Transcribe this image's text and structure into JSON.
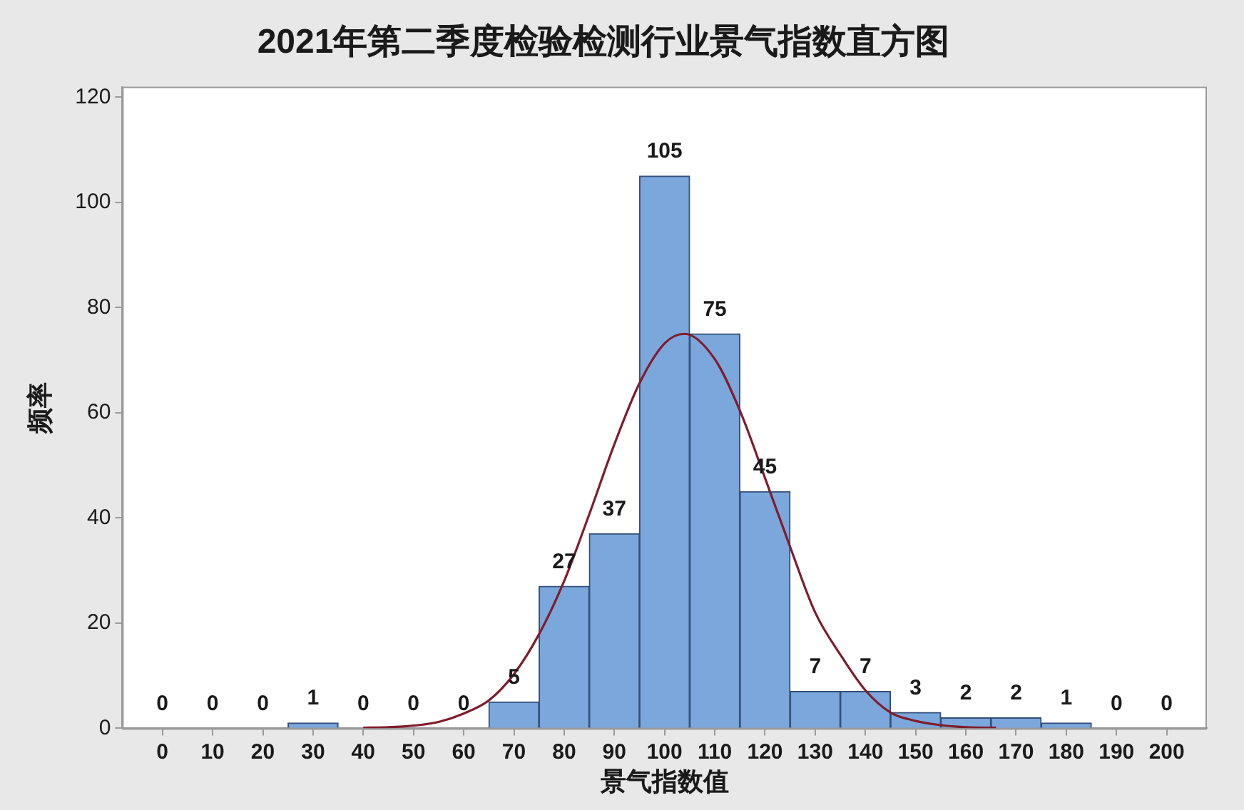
{
  "chart_data": {
    "type": "histogram",
    "title": "2021年第二季度检验检测行业景气指数直方图",
    "xlabel": "景气指数值",
    "ylabel": "频率",
    "bins": [
      -5,
      5,
      15,
      25,
      35,
      45,
      55,
      65,
      75,
      85,
      95,
      105,
      115,
      125,
      135,
      145,
      155,
      165,
      175,
      185,
      195,
      205
    ],
    "series": [
      {
        "color": "#7ba7dc",
        "values": [
          0,
          0,
          0,
          1,
          0,
          0,
          0,
          5,
          27,
          37,
          105,
          75,
          45,
          7,
          7,
          3,
          2,
          2,
          1,
          0,
          0
        ],
        "value_labels": [
          "0",
          "0",
          "0",
          "1",
          "0",
          "0",
          "0",
          "5",
          "27",
          "37",
          "105",
          "75",
          "45",
          "7",
          "7",
          "3",
          "2",
          "2",
          "1",
          "0",
          "0"
        ]
      },
      {
        "type": "line",
        "color": "#7f1d2d",
        "x": [
          40,
          45,
          50,
          55,
          60,
          65,
          70,
          75,
          80,
          85,
          90,
          95,
          100,
          104,
          110,
          115,
          120,
          125,
          130,
          135,
          140,
          145,
          150,
          155,
          160,
          166
        ],
        "values": [
          0.1,
          0.2,
          0.5,
          1.2,
          2.8,
          5.3,
          10.3,
          17.9,
          28,
          40.7,
          54,
          65.6,
          73.2,
          75,
          70.2,
          60.4,
          47.6,
          34.5,
          22,
          14,
          7.2,
          3,
          1.4,
          0.6,
          0.2,
          0.1
        ]
      }
    ],
    "xlim": [
      -8,
      208
    ],
    "xticks": [
      0,
      10,
      20,
      30,
      40,
      50,
      60,
      70,
      80,
      90,
      100,
      110,
      120,
      130,
      140,
      150,
      160,
      170,
      180,
      190,
      200
    ],
    "ylim": [
      0,
      122
    ],
    "yticks": [
      0,
      20,
      40,
      60,
      80,
      100,
      120
    ]
  }
}
